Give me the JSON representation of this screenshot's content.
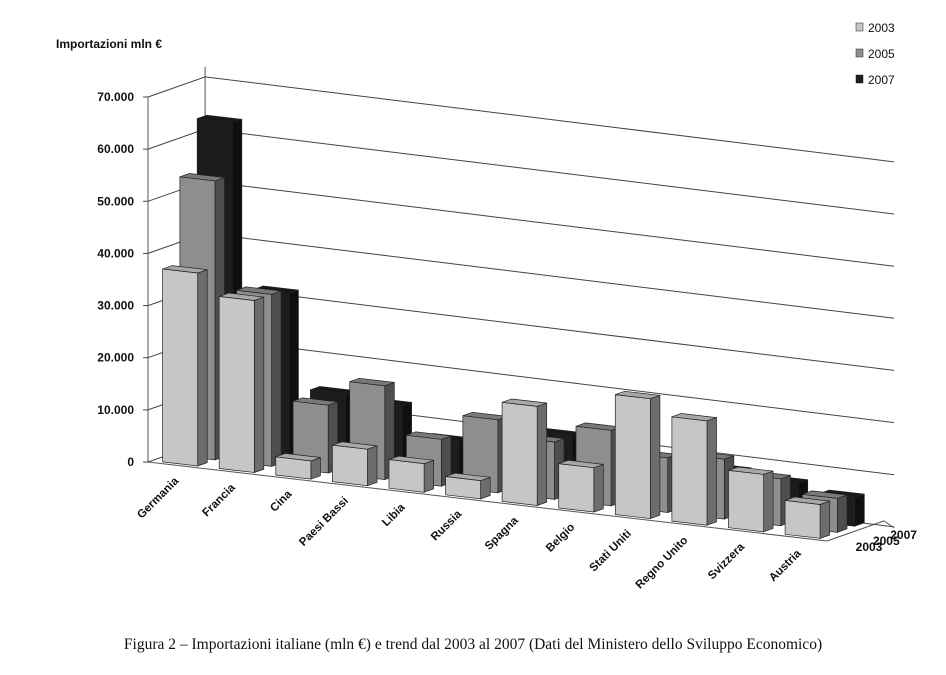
{
  "caption": "Figura 2 – Importazioni italiane (mln €) e trend dal 2003 al 2007 (Dati del Ministero dello Sviluppo Economico)",
  "chart_data": {
    "type": "bar",
    "subtype": "3d-column",
    "ylabel": "Importazioni mln €",
    "ylim": [
      0,
      70000
    ],
    "yticks": [
      "0",
      "10.000",
      "20.000",
      "30.000",
      "40.000",
      "50.000",
      "60.000",
      "70.000"
    ],
    "grid": true,
    "legend_position": "top-right",
    "categories": [
      "Germania",
      "Francia",
      "Cina",
      "Paesi Bassi",
      "Libia",
      "Russia",
      "Spagna",
      "Belgio",
      "Stati Uniti",
      "Regno Unito",
      "Svizzera",
      "Austria"
    ],
    "depth_labels": [
      "2003",
      "2005",
      "2007"
    ],
    "series": [
      {
        "name": "2003",
        "color": "#c6c6c6",
        "values": [
          37000,
          33000,
          3500,
          7000,
          5500,
          3500,
          19000,
          8500,
          23000,
          20000,
          11000,
          6500
        ]
      },
      {
        "name": "2005",
        "color": "#8e8e8e",
        "values": [
          53500,
          33000,
          13000,
          18000,
          9000,
          14000,
          11000,
          14500,
          10500,
          11500,
          9000,
          6500
        ]
      },
      {
        "name": "2007",
        "color": "#1c1c1c",
        "values": [
          63500,
          32000,
          14000,
          13000,
          7500,
          9000,
          11000,
          11000,
          6500,
          8000,
          7000,
          5500
        ]
      }
    ]
  }
}
